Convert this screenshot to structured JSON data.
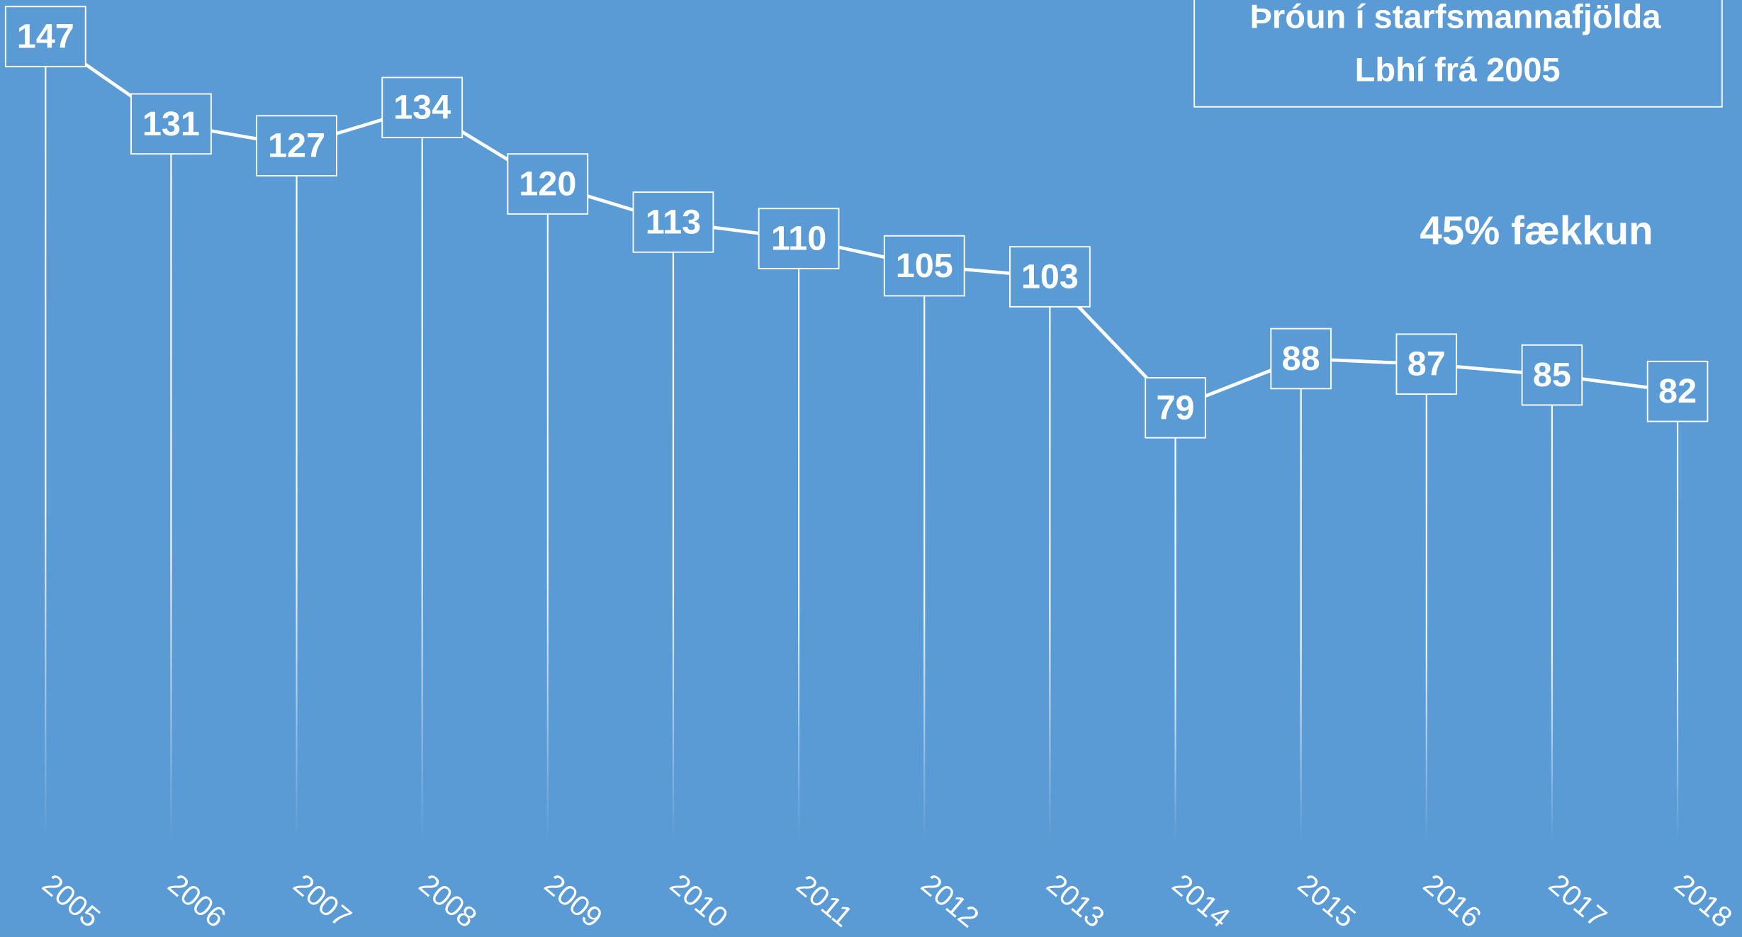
{
  "chart_data": {
    "type": "line",
    "title": [
      "Þróun í starfsmannafjölda",
      "Lbhí frá 2005"
    ],
    "annotation": "45% fækkun",
    "categories": [
      "2005",
      "2006",
      "2007",
      "2008",
      "2009",
      "2010",
      "2011",
      "2012",
      "2013",
      "2014",
      "2015",
      "2016",
      "2017",
      "2018"
    ],
    "values": [
      147,
      131,
      127,
      134,
      120,
      113,
      110,
      105,
      103,
      79,
      88,
      87,
      85,
      82
    ],
    "color": "#ffffff",
    "ylim": [
      0,
      150
    ],
    "grid": false
  }
}
